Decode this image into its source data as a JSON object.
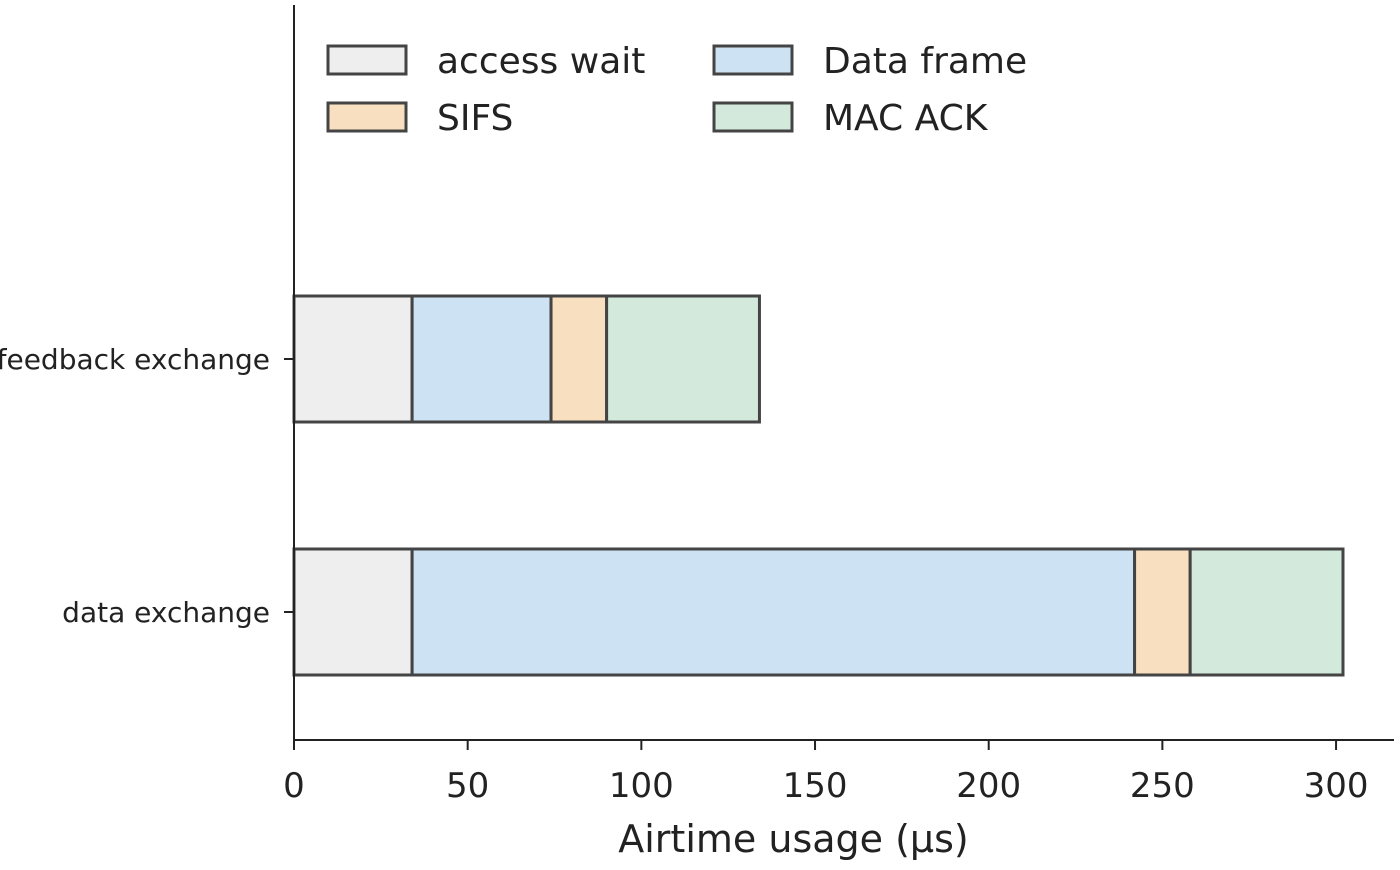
{
  "chart_data": {
    "type": "bar",
    "orientation": "horizontal",
    "stacked": true,
    "title": "",
    "xlabel": "Airtime usage (µs)",
    "ylabel": "",
    "xlim": [
      0,
      318
    ],
    "x_ticks": [
      0,
      50,
      100,
      150,
      200,
      250,
      300
    ],
    "grid": false,
    "legend_position": "top",
    "categories": [
      "feedback exchange",
      "data exchange"
    ],
    "series": [
      {
        "name": "access wait",
        "color": "#eeeeee",
        "values": [
          34,
          34
        ]
      },
      {
        "name": "Data frame",
        "color": "#cde2f3",
        "values": [
          40,
          208
        ]
      },
      {
        "name": "SIFS",
        "color": "#f8dfc0",
        "values": [
          16,
          16
        ]
      },
      {
        "name": "MAC ACK",
        "color": "#d3e9dc",
        "values": [
          44,
          44
        ]
      }
    ],
    "legend_order": [
      "access wait",
      "SIFS",
      "Data frame",
      "MAC ACK"
    ]
  }
}
